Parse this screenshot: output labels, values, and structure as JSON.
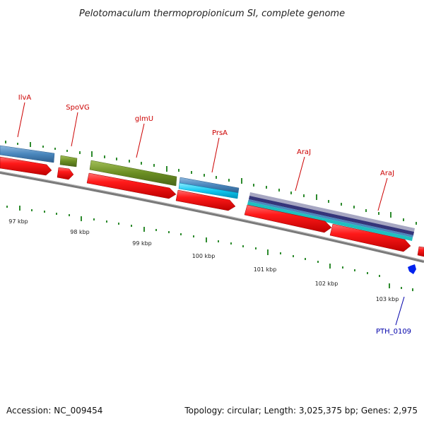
{
  "title": "Pelotomaculum thermopropionicum SI, complete genome",
  "footer": {
    "accession": "Accession: NC_009454",
    "summary": "Topology: circular; Length: 3,025,375 bp; Genes: 2,975"
  },
  "colors": {
    "gene_red": "#ee1111",
    "gene_steelblue": "#4a87bd",
    "gene_olive": "#6b8e23",
    "gene_cyan": "#00c8ee",
    "gene_teal": "#1fbfbf",
    "gene_purple": "#3a3a80",
    "gene_lavender": "#9a9ab8",
    "backbone": "#808080",
    "tick_green": "#2e8b2e",
    "marker_blue": "#0022ee"
  },
  "gene_labels": [
    {
      "id": "ilva",
      "text": "IlvA",
      "color": "red"
    },
    {
      "id": "spovg",
      "text": "SpoVG",
      "color": "red"
    },
    {
      "id": "glmu",
      "text": "glmU",
      "color": "red"
    },
    {
      "id": "prsa",
      "text": "PrsA",
      "color": "red"
    },
    {
      "id": "araj-1",
      "text": "AraJ",
      "color": "red"
    },
    {
      "id": "araj-2",
      "text": "AraJ",
      "color": "red"
    },
    {
      "id": "pth-0109",
      "text": "PTH_0109",
      "color": "blue"
    }
  ],
  "kbp_labels": [
    "97 kbp",
    "98 kbp",
    "99 kbp",
    "100 kbp",
    "101 kbp",
    "102 kbp",
    "103 kbp"
  ]
}
